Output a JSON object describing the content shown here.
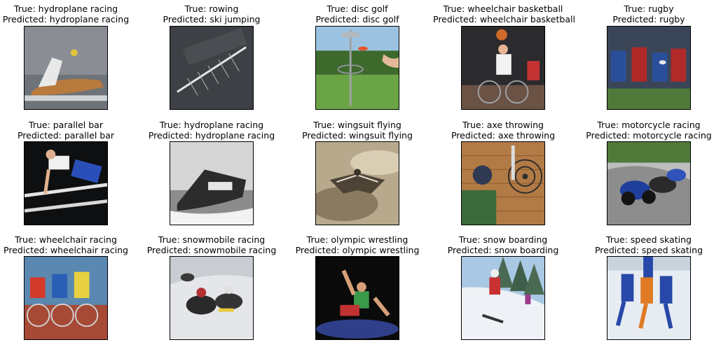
{
  "grid": [
    {
      "true_label": "True: hydroplane racing",
      "pred_label": "Predicted: hydroplane racing",
      "image_icon": "hydroplane-photo"
    },
    {
      "true_label": "True: rowing",
      "pred_label": "Predicted: ski jumping",
      "image_icon": "rowing-photo"
    },
    {
      "true_label": "True: disc golf",
      "pred_label": "Predicted: disc golf",
      "image_icon": "disc-golf-photo"
    },
    {
      "true_label": "True: wheelchair basketball",
      "pred_label": "Predicted: wheelchair basketball",
      "image_icon": "wheelchair-basketball-photo"
    },
    {
      "true_label": "True: rugby",
      "pred_label": "Predicted: rugby",
      "image_icon": "rugby-photo"
    },
    {
      "true_label": "True: parallel bar",
      "pred_label": "Predicted: parallel bar",
      "image_icon": "parallel-bar-photo"
    },
    {
      "true_label": "True: hydroplane racing",
      "pred_label": "Predicted: hydroplane racing",
      "image_icon": "hydroplane-bw-photo"
    },
    {
      "true_label": "True: wingsuit flying",
      "pred_label": "Predicted: wingsuit flying",
      "image_icon": "wingsuit-photo"
    },
    {
      "true_label": "True: axe throwing",
      "pred_label": "Predicted: axe throwing",
      "image_icon": "axe-throwing-photo"
    },
    {
      "true_label": "True: motorcycle racing",
      "pred_label": "Predicted: motorcycle racing",
      "image_icon": "motorcycle-photo"
    },
    {
      "true_label": "True: wheelchair racing",
      "pred_label": "Predicted: wheelchair racing",
      "image_icon": "wheelchair-racing-photo"
    },
    {
      "true_label": "True: snowmobile racing",
      "pred_label": "Predicted: snowmobile racing",
      "image_icon": "snowmobile-photo"
    },
    {
      "true_label": "True: olympic wrestling",
      "pred_label": "Predicted: olympic wrestling",
      "image_icon": "wrestling-photo"
    },
    {
      "true_label": "True: snow boarding",
      "pred_label": "Predicted: snow boarding",
      "image_icon": "snowboarding-photo"
    },
    {
      "true_label": "True: speed skating",
      "pred_label": "Predicted: speed skating",
      "image_icon": "speed-skating-photo"
    }
  ]
}
